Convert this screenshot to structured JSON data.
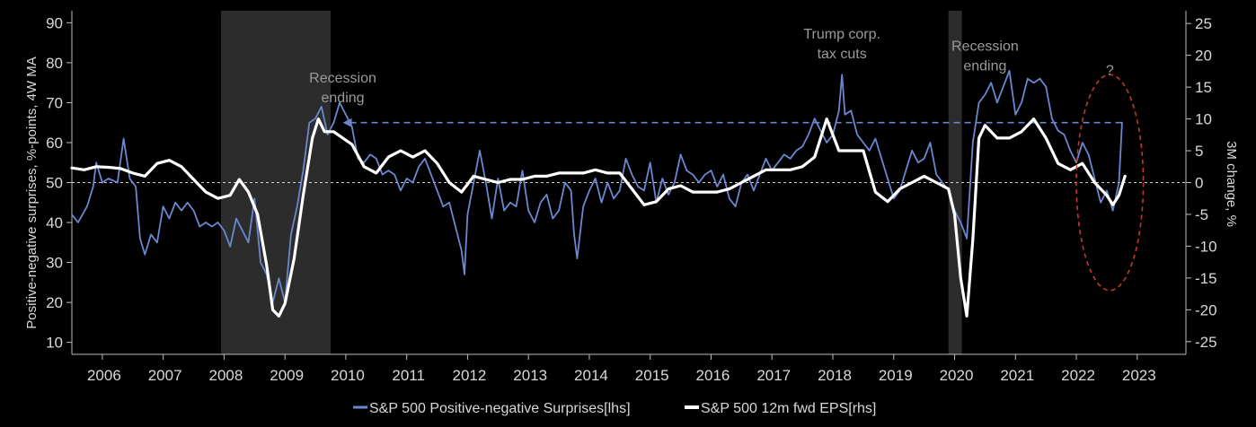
{
  "chart_data": {
    "type": "line",
    "title": "",
    "ylabel_left": "Positive-negative surprises, %-points, 4W MA",
    "ylabel_right": "3M change, %",
    "x_tick_labels": [
      "2006",
      "2007",
      "2008",
      "2009",
      "2010",
      "2011",
      "2012",
      "2013",
      "2014",
      "2015",
      "2016",
      "2017",
      "2018",
      "2019",
      "2020",
      "2021",
      "2022",
      "2023"
    ],
    "xlim": [
      2005.5,
      2023.8
    ],
    "ylim_left": [
      7,
      93
    ],
    "ylim_right": [
      -27,
      27
    ],
    "left_ticks": [
      10,
      20,
      30,
      40,
      50,
      60,
      70,
      80,
      90
    ],
    "right_ticks": [
      -25,
      -20,
      -15,
      -10,
      -5,
      0,
      5,
      10,
      15,
      20,
      25
    ],
    "legend_position": "bottom-center",
    "colors": {
      "surprises": "#6b87cf",
      "eps": "#ffffff",
      "recession_band": "#2c2c2c",
      "reference_line": "#cfcfcf",
      "arrow_line": "#6b87cf",
      "circle": "#c0392b"
    },
    "recession_bands": [
      {
        "start": 2007.95,
        "end": 2009.75
      },
      {
        "start": 2019.9,
        "end": 2020.12
      }
    ],
    "reference_line": {
      "axis": "left",
      "value": 50
    },
    "arrow_line": {
      "axis": "left",
      "value": 65,
      "x_start": 2009.95,
      "x_end": 2022.75
    },
    "circle": {
      "cx": 2022.55,
      "cy": 50,
      "rx": 0.55,
      "ry": 27
    },
    "annotations": [
      {
        "text_lines": [
          "Recession",
          "ending"
        ],
        "x": 2009.95,
        "y_left": 75
      },
      {
        "text_lines": [
          "Trump corp.",
          "tax cuts"
        ],
        "x": 2018.15,
        "y_left": 86
      },
      {
        "text_lines": [
          "Recession",
          "ending"
        ],
        "x": 2020.5,
        "y_left": 83
      },
      {
        "text_lines": [
          "?"
        ],
        "x": 2022.55,
        "y_left": 77
      }
    ],
    "series": [
      {
        "name": "S&P 500 Positive-negative Surprises[lhs]",
        "axis": "left",
        "points": [
          [
            2005.5,
            42
          ],
          [
            2005.6,
            40
          ],
          [
            2005.75,
            44
          ],
          [
            2005.85,
            49
          ],
          [
            2005.9,
            55
          ],
          [
            2006.0,
            50
          ],
          [
            2006.1,
            51
          ],
          [
            2006.25,
            50
          ],
          [
            2006.35,
            61
          ],
          [
            2006.45,
            51
          ],
          [
            2006.55,
            49
          ],
          [
            2006.62,
            36
          ],
          [
            2006.7,
            32
          ],
          [
            2006.8,
            37
          ],
          [
            2006.9,
            35
          ],
          [
            2007.0,
            44
          ],
          [
            2007.1,
            41
          ],
          [
            2007.2,
            45
          ],
          [
            2007.3,
            43
          ],
          [
            2007.4,
            45
          ],
          [
            2007.5,
            43
          ],
          [
            2007.6,
            39
          ],
          [
            2007.7,
            40
          ],
          [
            2007.8,
            39
          ],
          [
            2007.9,
            40
          ],
          [
            2008.0,
            38
          ],
          [
            2008.1,
            34
          ],
          [
            2008.2,
            41
          ],
          [
            2008.3,
            38
          ],
          [
            2008.4,
            35
          ],
          [
            2008.5,
            46
          ],
          [
            2008.55,
            38
          ],
          [
            2008.6,
            30
          ],
          [
            2008.7,
            27
          ],
          [
            2008.8,
            20
          ],
          [
            2008.9,
            26
          ],
          [
            2009.0,
            20
          ],
          [
            2009.1,
            37
          ],
          [
            2009.2,
            44
          ],
          [
            2009.3,
            53
          ],
          [
            2009.4,
            65
          ],
          [
            2009.5,
            66
          ],
          [
            2009.6,
            69
          ],
          [
            2009.7,
            62
          ],
          [
            2009.8,
            65
          ],
          [
            2009.9,
            70
          ],
          [
            2010.0,
            67
          ],
          [
            2010.1,
            64
          ],
          [
            2010.2,
            56
          ],
          [
            2010.3,
            55
          ],
          [
            2010.4,
            57
          ],
          [
            2010.5,
            56
          ],
          [
            2010.6,
            52
          ],
          [
            2010.7,
            53
          ],
          [
            2010.8,
            52
          ],
          [
            2010.9,
            48
          ],
          [
            2011.0,
            51
          ],
          [
            2011.1,
            50
          ],
          [
            2011.2,
            54
          ],
          [
            2011.3,
            56
          ],
          [
            2011.4,
            52
          ],
          [
            2011.5,
            48
          ],
          [
            2011.6,
            44
          ],
          [
            2011.7,
            45
          ],
          [
            2011.8,
            39
          ],
          [
            2011.9,
            33
          ],
          [
            2011.95,
            27
          ],
          [
            2012.0,
            42
          ],
          [
            2012.1,
            50
          ],
          [
            2012.2,
            58
          ],
          [
            2012.3,
            50
          ],
          [
            2012.4,
            41
          ],
          [
            2012.5,
            51
          ],
          [
            2012.6,
            43
          ],
          [
            2012.7,
            45
          ],
          [
            2012.8,
            44
          ],
          [
            2012.9,
            53
          ],
          [
            2013.0,
            43
          ],
          [
            2013.1,
            40
          ],
          [
            2013.2,
            45
          ],
          [
            2013.3,
            47
          ],
          [
            2013.4,
            41
          ],
          [
            2013.5,
            43
          ],
          [
            2013.6,
            50
          ],
          [
            2013.7,
            48
          ],
          [
            2013.75,
            37
          ],
          [
            2013.8,
            31
          ],
          [
            2013.9,
            44
          ],
          [
            2014.0,
            48
          ],
          [
            2014.1,
            51
          ],
          [
            2014.2,
            45
          ],
          [
            2014.3,
            50
          ],
          [
            2014.4,
            46
          ],
          [
            2014.5,
            48
          ],
          [
            2014.6,
            56
          ],
          [
            2014.7,
            52
          ],
          [
            2014.8,
            49
          ],
          [
            2014.9,
            48
          ],
          [
            2015.0,
            55
          ],
          [
            2015.1,
            45
          ],
          [
            2015.2,
            51
          ],
          [
            2015.3,
            47
          ],
          [
            2015.4,
            50
          ],
          [
            2015.5,
            57
          ],
          [
            2015.6,
            53
          ],
          [
            2015.7,
            52
          ],
          [
            2015.8,
            50
          ],
          [
            2015.9,
            52
          ],
          [
            2016.0,
            53
          ],
          [
            2016.1,
            49
          ],
          [
            2016.2,
            52
          ],
          [
            2016.3,
            46
          ],
          [
            2016.4,
            44
          ],
          [
            2016.5,
            50
          ],
          [
            2016.6,
            52
          ],
          [
            2016.7,
            48
          ],
          [
            2016.8,
            52
          ],
          [
            2016.9,
            56
          ],
          [
            2017.0,
            53
          ],
          [
            2017.1,
            55
          ],
          [
            2017.2,
            57
          ],
          [
            2017.3,
            56
          ],
          [
            2017.4,
            58
          ],
          [
            2017.5,
            59
          ],
          [
            2017.6,
            62
          ],
          [
            2017.7,
            66
          ],
          [
            2017.8,
            63
          ],
          [
            2017.9,
            60
          ],
          [
            2018.0,
            62
          ],
          [
            2018.1,
            68
          ],
          [
            2018.15,
            77
          ],
          [
            2018.2,
            67
          ],
          [
            2018.3,
            68
          ],
          [
            2018.4,
            62
          ],
          [
            2018.5,
            60
          ],
          [
            2018.6,
            58
          ],
          [
            2018.7,
            61
          ],
          [
            2018.8,
            56
          ],
          [
            2018.9,
            51
          ],
          [
            2019.0,
            46
          ],
          [
            2019.1,
            48
          ],
          [
            2019.2,
            53
          ],
          [
            2019.3,
            58
          ],
          [
            2019.4,
            55
          ],
          [
            2019.5,
            56
          ],
          [
            2019.6,
            60
          ],
          [
            2019.7,
            52
          ],
          [
            2019.8,
            50
          ],
          [
            2019.9,
            48
          ],
          [
            2020.0,
            43
          ],
          [
            2020.1,
            40
          ],
          [
            2020.2,
            36
          ],
          [
            2020.3,
            60
          ],
          [
            2020.4,
            70
          ],
          [
            2020.5,
            72
          ],
          [
            2020.6,
            75
          ],
          [
            2020.7,
            70
          ],
          [
            2020.8,
            74
          ],
          [
            2020.9,
            78
          ],
          [
            2021.0,
            67
          ],
          [
            2021.1,
            70
          ],
          [
            2021.2,
            76
          ],
          [
            2021.3,
            75
          ],
          [
            2021.4,
            76
          ],
          [
            2021.5,
            74
          ],
          [
            2021.6,
            66
          ],
          [
            2021.7,
            63
          ],
          [
            2021.8,
            62
          ],
          [
            2021.9,
            58
          ],
          [
            2022.0,
            55
          ],
          [
            2022.1,
            60
          ],
          [
            2022.2,
            57
          ],
          [
            2022.3,
            51
          ],
          [
            2022.4,
            45
          ],
          [
            2022.5,
            48
          ],
          [
            2022.6,
            43
          ],
          [
            2022.7,
            50
          ],
          [
            2022.75,
            65
          ]
        ]
      },
      {
        "name": "S&P 500 12m fwd EPS[rhs]",
        "axis": "right",
        "points": [
          [
            2005.5,
            2.3
          ],
          [
            2005.7,
            2.0
          ],
          [
            2005.9,
            2.5
          ],
          [
            2006.1,
            2.4
          ],
          [
            2006.3,
            2.2
          ],
          [
            2006.5,
            1.5
          ],
          [
            2006.7,
            1.0
          ],
          [
            2006.9,
            3.0
          ],
          [
            2007.1,
            3.5
          ],
          [
            2007.3,
            2.5
          ],
          [
            2007.5,
            0.5
          ],
          [
            2007.7,
            -1.5
          ],
          [
            2007.9,
            -2.5
          ],
          [
            2008.1,
            -2.0
          ],
          [
            2008.25,
            0.5
          ],
          [
            2008.4,
            -1.5
          ],
          [
            2008.55,
            -5
          ],
          [
            2008.7,
            -13
          ],
          [
            2008.8,
            -20
          ],
          [
            2008.9,
            -21
          ],
          [
            2009.0,
            -19
          ],
          [
            2009.15,
            -12
          ],
          [
            2009.3,
            -2
          ],
          [
            2009.45,
            7
          ],
          [
            2009.55,
            10
          ],
          [
            2009.65,
            8
          ],
          [
            2009.8,
            8
          ],
          [
            2009.95,
            7
          ],
          [
            2010.1,
            6
          ],
          [
            2010.3,
            2.5
          ],
          [
            2010.5,
            1.5
          ],
          [
            2010.7,
            4
          ],
          [
            2010.9,
            5
          ],
          [
            2011.1,
            4
          ],
          [
            2011.3,
            5
          ],
          [
            2011.5,
            3
          ],
          [
            2011.7,
            0
          ],
          [
            2011.9,
            -1.5
          ],
          [
            2012.1,
            1
          ],
          [
            2012.3,
            0.5
          ],
          [
            2012.5,
            0
          ],
          [
            2012.7,
            0.5
          ],
          [
            2012.9,
            0.5
          ],
          [
            2013.1,
            1
          ],
          [
            2013.3,
            1
          ],
          [
            2013.5,
            1.5
          ],
          [
            2013.7,
            1.5
          ],
          [
            2013.9,
            1.5
          ],
          [
            2014.1,
            2
          ],
          [
            2014.3,
            1.5
          ],
          [
            2014.5,
            1.5
          ],
          [
            2014.7,
            -1
          ],
          [
            2014.9,
            -3.5
          ],
          [
            2015.1,
            -3
          ],
          [
            2015.3,
            -1
          ],
          [
            2015.5,
            -0.5
          ],
          [
            2015.7,
            -1.5
          ],
          [
            2015.9,
            -1.5
          ],
          [
            2016.1,
            -1.5
          ],
          [
            2016.3,
            -1
          ],
          [
            2016.5,
            0
          ],
          [
            2016.7,
            1
          ],
          [
            2016.9,
            2
          ],
          [
            2017.1,
            2
          ],
          [
            2017.3,
            2
          ],
          [
            2017.5,
            2.5
          ],
          [
            2017.7,
            4
          ],
          [
            2017.9,
            10
          ],
          [
            2018.1,
            5
          ],
          [
            2018.3,
            5
          ],
          [
            2018.5,
            5
          ],
          [
            2018.7,
            -1.5
          ],
          [
            2018.9,
            -3
          ],
          [
            2019.1,
            -1
          ],
          [
            2019.3,
            0
          ],
          [
            2019.5,
            1
          ],
          [
            2019.7,
            0
          ],
          [
            2019.9,
            -1
          ],
          [
            2020.0,
            -5
          ],
          [
            2020.1,
            -15
          ],
          [
            2020.2,
            -21
          ],
          [
            2020.3,
            -9
          ],
          [
            2020.4,
            7
          ],
          [
            2020.5,
            9
          ],
          [
            2020.7,
            7
          ],
          [
            2020.9,
            7
          ],
          [
            2021.1,
            8
          ],
          [
            2021.3,
            10
          ],
          [
            2021.5,
            7
          ],
          [
            2021.7,
            3
          ],
          [
            2021.9,
            2
          ],
          [
            2022.1,
            3
          ],
          [
            2022.3,
            0
          ],
          [
            2022.5,
            -2
          ],
          [
            2022.6,
            -3.5
          ],
          [
            2022.7,
            -2
          ],
          [
            2022.8,
            1
          ]
        ]
      }
    ]
  }
}
